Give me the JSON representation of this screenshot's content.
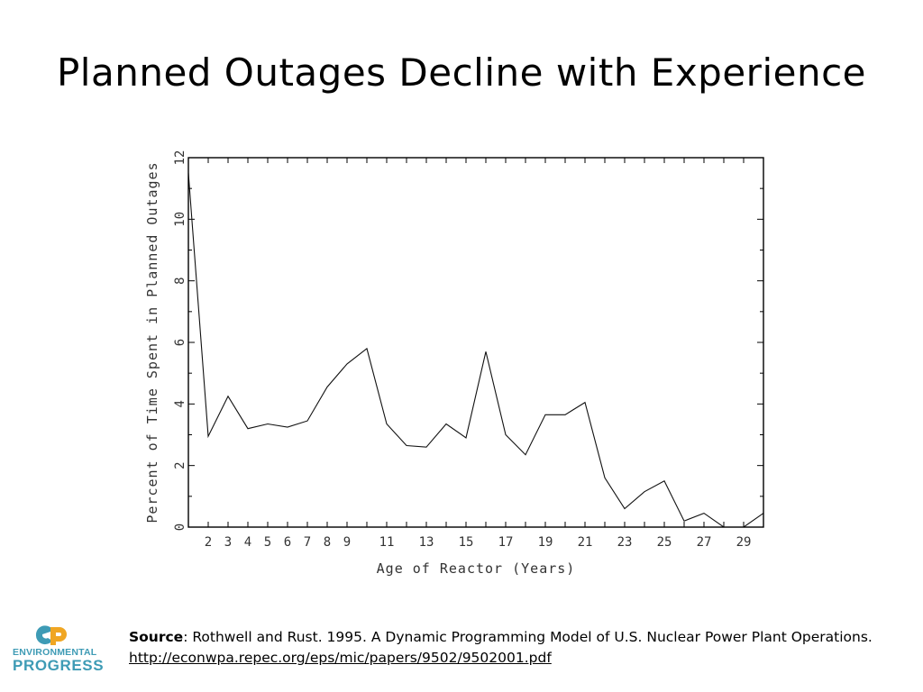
{
  "slide": {
    "title": "Planned Outages Decline with Experience"
  },
  "chart_data": {
    "type": "line",
    "xlabel": "Age of Reactor (Years)",
    "ylabel": "Percent of Time Spent in Planned Outages",
    "x": [
      1,
      2,
      3,
      4,
      5,
      6,
      7,
      8,
      9,
      10,
      11,
      12,
      13,
      14,
      15,
      16,
      17,
      18,
      19,
      20,
      21,
      22,
      23,
      24,
      25,
      26,
      27,
      28,
      29,
      30
    ],
    "series": [
      {
        "name": "Planned outages",
        "values": [
          11.5,
          2.95,
          4.25,
          3.2,
          3.35,
          3.25,
          3.45,
          4.55,
          5.3,
          5.8,
          3.35,
          2.65,
          2.6,
          3.35,
          2.9,
          5.7,
          3.0,
          2.35,
          3.65,
          3.65,
          4.05,
          1.6,
          0.6,
          1.15,
          1.5,
          0.2,
          0.45,
          0.0,
          0.0,
          0.45
        ]
      }
    ],
    "xlim": [
      1,
      30
    ],
    "ylim": [
      0,
      12
    ],
    "x_tick_labels": [
      "2",
      "3",
      "4",
      "5",
      "6",
      "7",
      "8",
      "9",
      "11",
      "13",
      "15",
      "17",
      "19",
      "21",
      "23",
      "25",
      "27",
      "29"
    ],
    "y_tick_labels": [
      "0",
      "2",
      "4",
      "6",
      "8",
      "10",
      "12"
    ],
    "grid": false,
    "legend": "none"
  },
  "footer": {
    "source_label": "Source",
    "source_text": ": Rothwell and Rust. 1995. A Dynamic Programming Model of U.S. Nuclear Power Plant Operations.",
    "url": "http://econwpa.repec.org/eps/mic/papers/9502/9502001.pdf"
  },
  "logo": {
    "line1": "ENVIRONMENTAL",
    "line2": "PROGRESS",
    "colors": {
      "teal": "#3e9bb5",
      "orange": "#f0a623"
    }
  }
}
